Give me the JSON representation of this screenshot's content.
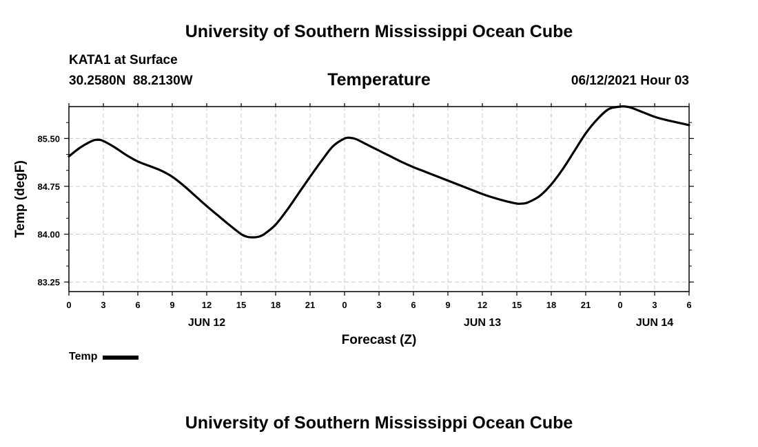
{
  "header": {
    "title": "University of Southern Mississippi Ocean Cube",
    "station": "KATA1 at Surface",
    "coordinates": "30.2580N  88.2130W",
    "chart_title": "Temperature",
    "timestamp": "06/12/2021 Hour 03"
  },
  "footer": {
    "title": "University of Southern Mississippi Ocean Cube"
  },
  "legend": {
    "label": "Temp"
  },
  "colors": {
    "line": "#000000",
    "grid": "#c8c8c8",
    "frame": "#000000"
  },
  "chart_data": {
    "type": "line",
    "title": "Temperature",
    "xlabel": "Forecast (Z)",
    "ylabel": "Temp (degF)",
    "x_unit": "hours since 2021-06-12 00Z",
    "xlim": [
      0,
      54
    ],
    "ylim": [
      83.1,
      86.0
    ],
    "grid": true,
    "x_ticks": [
      {
        "x": 0,
        "label": "0"
      },
      {
        "x": 3,
        "label": "3"
      },
      {
        "x": 6,
        "label": "6"
      },
      {
        "x": 9,
        "label": "9"
      },
      {
        "x": 12,
        "label": "12"
      },
      {
        "x": 15,
        "label": "15"
      },
      {
        "x": 18,
        "label": "18"
      },
      {
        "x": 21,
        "label": "21"
      },
      {
        "x": 24,
        "label": "0"
      },
      {
        "x": 27,
        "label": "3"
      },
      {
        "x": 30,
        "label": "6"
      },
      {
        "x": 33,
        "label": "9"
      },
      {
        "x": 36,
        "label": "12"
      },
      {
        "x": 39,
        "label": "15"
      },
      {
        "x": 42,
        "label": "18"
      },
      {
        "x": 45,
        "label": "21"
      },
      {
        "x": 48,
        "label": "0"
      },
      {
        "x": 51,
        "label": "3"
      },
      {
        "x": 54,
        "label": "6"
      }
    ],
    "y_ticks": [
      {
        "y": 83.25,
        "label": "83.25"
      },
      {
        "y": 84.0,
        "label": "84.00"
      },
      {
        "y": 84.75,
        "label": "84.75"
      },
      {
        "y": 85.5,
        "label": "85.50"
      }
    ],
    "date_labels": [
      {
        "x": 12,
        "label": "JUN 12"
      },
      {
        "x": 36,
        "label": "JUN 13"
      },
      {
        "x": 51,
        "label": "JUN 14"
      }
    ],
    "series": [
      {
        "name": "Temp",
        "x": [
          0,
          1,
          2,
          2.5,
          3,
          4,
          5,
          6,
          7,
          8,
          9,
          10,
          11,
          12,
          13,
          14,
          15,
          15.5,
          16,
          16.5,
          17,
          18,
          19,
          20,
          21,
          22,
          23,
          24,
          24.5,
          25,
          26,
          27,
          28,
          29,
          30,
          31,
          32,
          33,
          34,
          35,
          36,
          37,
          38,
          39,
          39.5,
          40,
          41,
          42,
          43,
          44,
          45,
          46,
          47,
          48,
          48.5,
          49,
          50,
          51,
          52,
          53,
          54
        ],
        "y": [
          85.22,
          85.36,
          85.46,
          85.48,
          85.46,
          85.36,
          85.24,
          85.14,
          85.07,
          85.0,
          84.9,
          84.76,
          84.6,
          84.44,
          84.29,
          84.14,
          84.0,
          83.96,
          83.95,
          83.96,
          84.0,
          84.15,
          84.38,
          84.64,
          84.9,
          85.15,
          85.38,
          85.5,
          85.51,
          85.49,
          85.4,
          85.31,
          85.22,
          85.13,
          85.05,
          84.98,
          84.91,
          84.84,
          84.77,
          84.7,
          84.63,
          84.57,
          84.52,
          84.48,
          84.48,
          84.5,
          84.6,
          84.78,
          85.02,
          85.3,
          85.58,
          85.8,
          85.96,
          86.0,
          86.0,
          85.98,
          85.91,
          85.84,
          85.79,
          85.75,
          85.71
        ]
      }
    ]
  }
}
